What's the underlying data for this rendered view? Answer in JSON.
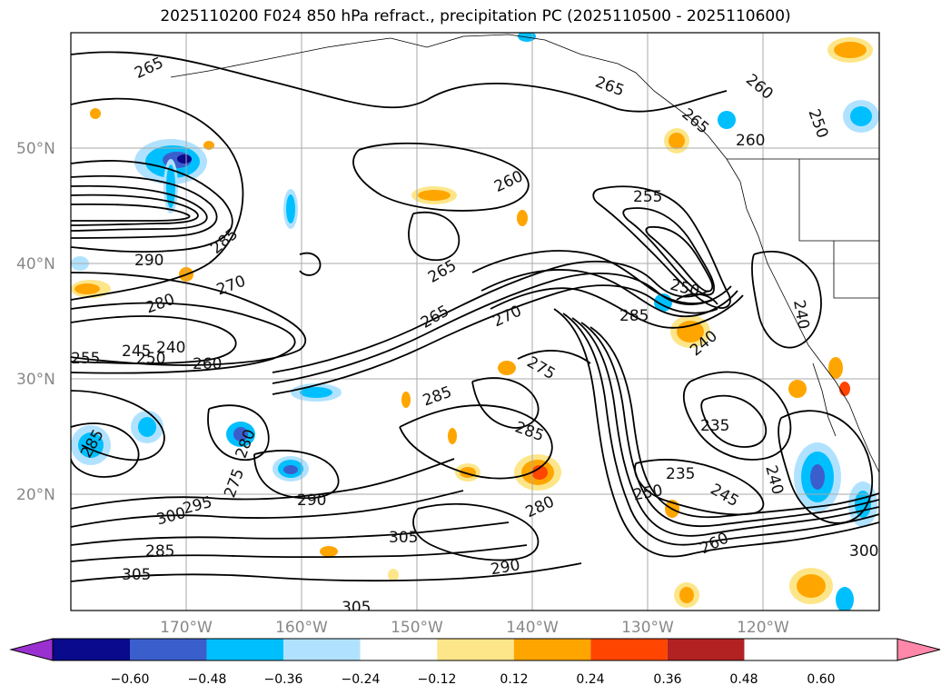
{
  "title": "2025110200 F024 850 hPa refract., precipitation PC (2025110500 - 2025110600)",
  "axes": {
    "lat_labels": [
      "50°N",
      "40°N",
      "30°N",
      "20°N"
    ],
    "lon_labels": [
      "170°W",
      "160°W",
      "150°W",
      "140°W",
      "130°W",
      "120°W"
    ]
  },
  "contour_labels": [
    "265",
    "265",
    "260",
    "265",
    "260",
    "250",
    "260",
    "255",
    "285",
    "290",
    "280",
    "270",
    "265",
    "270",
    "265",
    "285",
    "255",
    "245",
    "240",
    "250",
    "260",
    "275",
    "285",
    "285",
    "280",
    "285",
    "275",
    "235",
    "240",
    "250",
    "240",
    "235",
    "290",
    "295",
    "300",
    "305",
    "280",
    "290",
    "305",
    "305",
    "285",
    "250",
    "245",
    "260",
    "300",
    "240"
  ],
  "colorbar": {
    "ticks": [
      "−0.60",
      "−0.48",
      "−0.36",
      "−0.24",
      "−0.12",
      "0.12",
      "0.24",
      "0.36",
      "0.48",
      "0.60"
    ],
    "colors": [
      "#9b30d0",
      "#0a0a8c",
      "#3a5fcd",
      "#00bfff",
      "#b0e2ff",
      "#ffffff",
      "#fde68a",
      "#ffa500",
      "#ff4500",
      "#b22222",
      "#ff88aa"
    ]
  },
  "colors": {
    "grid": "#aaaaaa",
    "axis_label": "#888888"
  }
}
